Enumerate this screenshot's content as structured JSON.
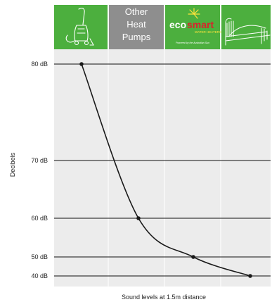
{
  "chart_data": {
    "type": "line",
    "title": "",
    "xlabel": "Sound levels at 1.5m distance",
    "ylabel": "Decibels",
    "categories": [
      "Vacuum cleaner",
      "Other Heat Pumps",
      "ecosmart",
      "Bedroom at night"
    ],
    "header": {
      "other_heat_pumps_label": [
        "Other",
        "Heat",
        "Pumps"
      ],
      "logo": {
        "brand_left": "eco",
        "brand_right": "smart",
        "brand_sub": "WATER HEATERS",
        "tagline": "Powered by the Australian Sun"
      },
      "icons": [
        "vacuum-cleaner-icon",
        "",
        "sun-logo-icon",
        "bed-with-moon-icon"
      ]
    },
    "series": [
      {
        "values": [
          80,
          60,
          50,
          40
        ]
      }
    ],
    "y_ticks": [
      {
        "value": 80,
        "label": "80 dB"
      },
      {
        "value": 70,
        "label": "70 dB"
      },
      {
        "value": 60,
        "label": "60 dB"
      },
      {
        "value": 50,
        "label": "50 dB"
      },
      {
        "value": 40,
        "label": "40 dB"
      }
    ],
    "ylim": [
      40,
      80
    ],
    "grid": true,
    "colors": {
      "header_green": "#4caf3e",
      "header_grey": "#8e8e8e",
      "plot_background": "#ececec",
      "line": "#1a1a1a",
      "logo_red": "#d9242b",
      "logo_yellow": "#ffe33b"
    }
  }
}
